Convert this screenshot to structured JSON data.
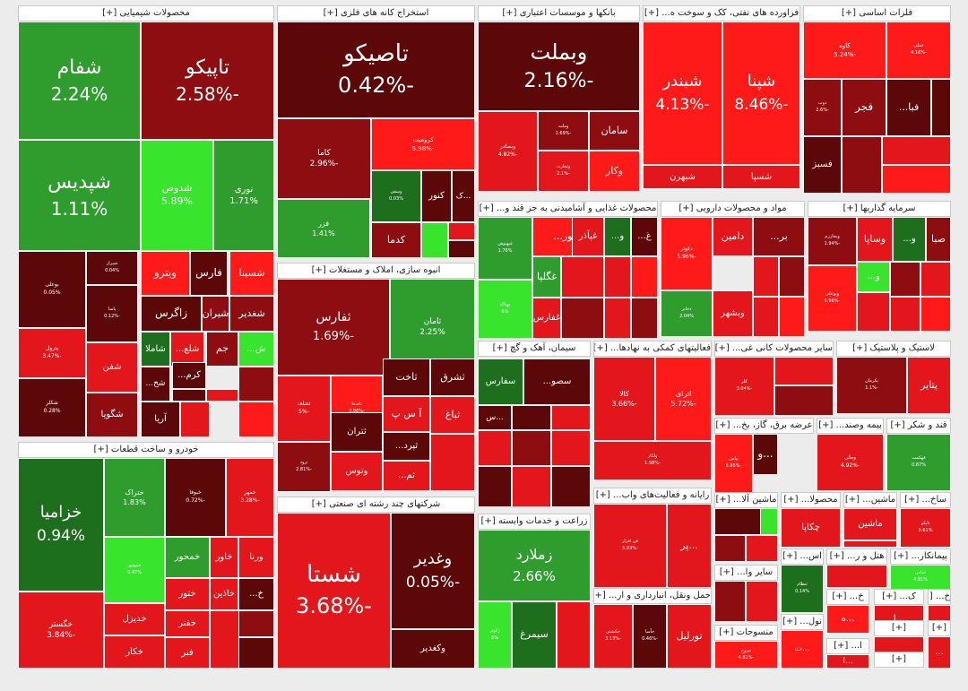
{
  "chart_data": {
    "type": "treemap",
    "colors": {
      "strong_green": "#39e52c",
      "green": "#2e9d2e",
      "dark_green": "#1d6e1d",
      "red": "#e3161b",
      "bright_red": "#ff1a1a",
      "dark_red": "#8e0d10",
      "maroon": "#5d0808"
    },
    "sectors": [
      {
        "name": "محصولات شیمیایی [+]"
      },
      {
        "name": "استخراج کانه های فلزی [+]"
      },
      {
        "name": "بانکها و موسسات اعتباری [+]"
      },
      {
        "name": "فراورده های نفتی، کک و سوخت ه... [+]"
      },
      {
        "name": "فلزات اساسی [+]"
      },
      {
        "name": "محصولات غذایی و آشامیدنی به جز قند و... [+]"
      },
      {
        "name": "مواد و محصولات دارویی [+]"
      },
      {
        "name": "سرمایه گذاریها [+]"
      },
      {
        "name": "انبوه سازی، املاک و مستغلات [+]"
      },
      {
        "name": "خودرو و ساخت قطعات [+]"
      },
      {
        "name": "سیمان، آهک و گچ [+]"
      },
      {
        "name": "فعالیتهای کمکی به نهادها... [+]"
      },
      {
        "name": "سایر محصولات کانی غی... [+]"
      },
      {
        "name": "لاستیک و پلاستیک [+]"
      },
      {
        "name": "شرکتهای چند رشته ای صنعتی [+]"
      },
      {
        "name": "زراعت و خدمات وابسته [+]"
      },
      {
        "name": "رایانه و فعالیت‌های واب... [+]"
      },
      {
        "name": "عرضه برق، گاز، بخ... [+]"
      },
      {
        "name": "بیمه وصند... [+]"
      },
      {
        "name": "قند و شکر [+]"
      },
      {
        "name": "ماشین آلا... [+]"
      },
      {
        "name": "محصولا... [+]"
      },
      {
        "name": "ماشین... [+]"
      },
      {
        "name": "ساخ... [+]"
      },
      {
        "name": "حمل ونقل، انبارداری و ار... [+]"
      },
      {
        "name": "سایر وا... [+]"
      },
      {
        "name": "منسوجات [+]"
      },
      {
        "name": "اس... [+]"
      },
      {
        "name": "پیمانکار... [+]"
      },
      {
        "name": "هتل و ر... [+]"
      },
      {
        "name": "نول... [+]"
      },
      {
        "name": "خ... [+]"
      },
      {
        "name": "خ... [+]"
      },
      {
        "name": "ک... [+]"
      },
      {
        "name": "ا... [+]"
      },
      {
        "name": "[+]"
      },
      {
        "name": "[+]"
      },
      {
        "name": "[+]"
      },
      {
        "name": "[+]"
      }
    ],
    "tiles": [
      {
        "n": "شفام",
        "p": "2.24%",
        "c": "green"
      },
      {
        "n": "تاپیکو",
        "p": "-2.58%",
        "c": "dark_red"
      },
      {
        "n": "شپدیس",
        "p": "1.11%",
        "c": "green"
      },
      {
        "n": "شدوص",
        "p": "5.89%",
        "c": "strong_green"
      },
      {
        "n": "نوری",
        "p": "1.71%",
        "c": "green"
      },
      {
        "n": "بوعلی",
        "p": "0.05%",
        "c": "maroon"
      },
      {
        "n": "شیراز",
        "p": "0.04%",
        "c": "maroon"
      },
      {
        "n": "پترول",
        "p": "-3.47%",
        "c": "red"
      },
      {
        "n": "شکلر",
        "p": "0.28%",
        "c": "maroon"
      },
      {
        "n": "پاسا",
        "p": "-0.12%",
        "c": "maroon"
      },
      {
        "n": "شفن",
        "p": "",
        "c": "red"
      },
      {
        "n": "شگویا",
        "p": "",
        "c": "dark_red"
      },
      {
        "n": "ویترو",
        "p": "",
        "c": "bright_red"
      },
      {
        "n": "فارس",
        "p": "",
        "c": "maroon"
      },
      {
        "n": "شسینا",
        "p": "",
        "c": "bright_red"
      },
      {
        "n": "زاگرس",
        "p": "",
        "c": "maroon"
      },
      {
        "n": "شیران",
        "p": "",
        "c": "dark_red"
      },
      {
        "n": "شغدیر",
        "p": "",
        "c": "dark_red"
      },
      {
        "n": "شاملا",
        "p": "",
        "c": "dark_green"
      },
      {
        "n": "شلع...",
        "p": "",
        "c": "red"
      },
      {
        "n": "جم",
        "p": "",
        "c": "dark_red"
      },
      {
        "n": "ش...",
        "p": "",
        "c": "strong_green"
      },
      {
        "n": "شخ...",
        "p": "",
        "c": "maroon"
      },
      {
        "n": "کرم...",
        "p": "",
        "c": "maroon"
      },
      {
        "n": "آریا",
        "p": "",
        "c": "maroon"
      },
      {
        "n": "تاصیکو",
        "p": "-0.42%",
        "c": "maroon"
      },
      {
        "n": "کاما",
        "p": "-2.96%",
        "c": "dark_red"
      },
      {
        "n": "کرومیت",
        "p": "-5.98%",
        "c": "bright_red"
      },
      {
        "n": "فزر",
        "p": "1.41%",
        "c": "green"
      },
      {
        "n": "وسفن",
        "p": "0.03%",
        "c": "dark_green"
      },
      {
        "n": "کنور",
        "p": "",
        "c": "maroon"
      },
      {
        "n": "...ک",
        "p": "",
        "c": "maroon"
      },
      {
        "n": "کدما",
        "p": "",
        "c": "dark_red"
      },
      {
        "n": "وبملت",
        "p": "-2.16%",
        "c": "maroon"
      },
      {
        "n": "وبصادر",
        "p": "-4.82%",
        "c": "red"
      },
      {
        "n": "وملت",
        "p": "-1.69%",
        "c": "dark_red"
      },
      {
        "n": "وتجارت",
        "p": "-2.1%",
        "c": "red"
      },
      {
        "n": "سامان",
        "p": "",
        "c": "dark_red"
      },
      {
        "n": "وکار",
        "p": "",
        "c": "bright_red"
      },
      {
        "n": "شبندر",
        "p": "-4.13%",
        "c": "bright_red"
      },
      {
        "n": "شپنا",
        "p": "-8.46%",
        "c": "bright_red"
      },
      {
        "n": "شبهرن",
        "p": "",
        "c": "red"
      },
      {
        "n": "شسپا",
        "p": "",
        "c": "red"
      },
      {
        "n": "کاوه",
        "p": "-5.24%",
        "c": "bright_red"
      },
      {
        "n": "فملی",
        "p": "-4.16%",
        "c": "bright_red"
      },
      {
        "n": "ذوب",
        "p": "-2.6%",
        "c": "dark_red"
      },
      {
        "n": "فجر",
        "p": "",
        "c": "dark_red"
      },
      {
        "n": "فبا...",
        "p": "",
        "c": "maroon"
      },
      {
        "n": "فسبز",
        "p": "",
        "c": "maroon"
      },
      {
        "n": "غکور...",
        "p": "",
        "c": "bright_red"
      },
      {
        "n": "غبهنوش",
        "p": "1.76%",
        "c": "green"
      },
      {
        "n": "بهپاک",
        "p": "6%",
        "c": "strong_green"
      },
      {
        "n": "غگلپا",
        "p": "",
        "c": "green"
      },
      {
        "n": "غفارس",
        "p": "",
        "c": "red"
      },
      {
        "n": "غپآذر",
        "p": "",
        "c": "red"
      },
      {
        "n": "غ...",
        "p": "",
        "c": "maroon"
      },
      {
        "n": "و...",
        "p": "",
        "c": "dark_green"
      },
      {
        "n": "دکوثر",
        "p": "-5.96%",
        "c": "bright_red"
      },
      {
        "n": "دامین",
        "p": "",
        "c": "red"
      },
      {
        "n": "بر...",
        "p": "",
        "c": "dark_red"
      },
      {
        "n": "دجابر",
        "p": "2.04%",
        "c": "green"
      },
      {
        "n": "وبشهر",
        "p": "",
        "c": "red"
      },
      {
        "n": "وساپا",
        "p": "",
        "c": "red"
      },
      {
        "n": "وبخارزم",
        "p": "-1.94%",
        "c": "dark_red"
      },
      {
        "n": "وبوعلی",
        "p": "-5.98%",
        "c": "bright_red"
      },
      {
        "n": "صبا",
        "p": "",
        "c": "dark_red"
      },
      {
        "n": "و...",
        "p": "",
        "c": "dark_green"
      },
      {
        "n": "و...",
        "p": "",
        "c": "strong_green"
      },
      {
        "n": "ثفارس",
        "p": "-1.69%",
        "c": "dark_red"
      },
      {
        "n": "ثامان",
        "p": "2.25%",
        "c": "green"
      },
      {
        "n": "ثشاهد",
        "p": "-5%",
        "c": "red"
      },
      {
        "n": "ثاصفا",
        "p": "-3.96%",
        "c": "bright_red"
      },
      {
        "n": "ثاخت",
        "p": "",
        "c": "maroon"
      },
      {
        "n": "ثشرق",
        "p": "",
        "c": "maroon"
      },
      {
        "n": "ثتران",
        "p": "",
        "c": "maroon"
      },
      {
        "n": "آ س پ",
        "p": "",
        "c": "red"
      },
      {
        "n": "ثباغ",
        "p": "",
        "c": "red"
      },
      {
        "n": "ثرود",
        "p": "-2.81%",
        "c": "dark_red"
      },
      {
        "n": "ثپرد...",
        "p": "",
        "c": "maroon"
      },
      {
        "n": "وتوس",
        "p": "",
        "c": "red"
      },
      {
        "n": "ثم...",
        "p": "",
        "c": "red"
      },
      {
        "n": "خزامیا",
        "p": "0.94%",
        "c": "dark_green"
      },
      {
        "n": "خگستر",
        "p": "-3.84%",
        "c": "red"
      },
      {
        "n": "ختراک",
        "p": "1.83%",
        "c": "green"
      },
      {
        "n": "خبوفا",
        "p": "-0.72%",
        "c": "maroon"
      },
      {
        "n": "خمهر",
        "p": "-3.28%",
        "c": "red"
      },
      {
        "n": "خموتور",
        "p": "5.47%",
        "c": "strong_green"
      },
      {
        "n": "خمحور",
        "p": "",
        "c": "green"
      },
      {
        "n": "خاور",
        "p": "",
        "c": "red"
      },
      {
        "n": "ورنا",
        "p": "",
        "c": "red"
      },
      {
        "n": "ختور",
        "p": "",
        "c": "red"
      },
      {
        "n": "خاذین",
        "p": "",
        "c": "red"
      },
      {
        "n": "خ...",
        "p": "",
        "c": "maroon"
      },
      {
        "n": "خدیزل",
        "p": "",
        "c": "red"
      },
      {
        "n": "خفنر",
        "p": "",
        "c": "red"
      },
      {
        "n": "خکار",
        "p": "",
        "c": "red"
      },
      {
        "n": "فنر",
        "p": "",
        "c": "red"
      },
      {
        "n": "سصو...",
        "p": "",
        "c": "maroon"
      },
      {
        "n": "سفارس",
        "p": "",
        "c": "dark_green"
      },
      {
        "n": "...س",
        "p": "",
        "c": "maroon"
      },
      {
        "n": "کالا",
        "p": "-3.66%",
        "c": "red"
      },
      {
        "n": "اترای",
        "p": "-5.72%",
        "c": "bright_red"
      },
      {
        "n": "ولکار",
        "p": "-1.98%",
        "c": "red"
      },
      {
        "n": "کمر...",
        "p": "",
        "c": "red"
      },
      {
        "n": "کلر",
        "p": "-3.04%",
        "c": "red"
      },
      {
        "n": "پتایر",
        "p": "",
        "c": "red"
      },
      {
        "n": "پکرمان",
        "p": "-1.1%",
        "c": "dark_red"
      },
      {
        "n": "شستا",
        "p": "-3.68%",
        "c": "red"
      },
      {
        "n": "وغدیر",
        "p": "-0.05%",
        "c": "maroon"
      },
      {
        "n": "وکغدیر",
        "p": "",
        "c": "maroon"
      },
      {
        "n": "زملارد",
        "p": "2.66%",
        "c": "green"
      },
      {
        "n": "سیمرغ",
        "p": "",
        "c": "dark_green"
      },
      {
        "n": "زکوثر",
        "p": "5%",
        "c": "strong_green"
      },
      {
        "n": "فن افزار",
        "p": "-5.93%",
        "c": "red"
      },
      {
        "n": "...پر",
        "p": "",
        "c": "red"
      },
      {
        "n": "...و",
        "p": "",
        "c": "maroon"
      },
      {
        "n": "بپاس",
        "p": "-5.85%",
        "c": "bright_red"
      },
      {
        "n": "وملی",
        "p": "-4.92%",
        "c": "red"
      },
      {
        "n": "قهکمت",
        "p": "0.87%",
        "c": "green"
      },
      {
        "n": "چکاپا",
        "p": "",
        "c": "red"
      },
      {
        "n": "ماشین",
        "p": "",
        "c": "red"
      },
      {
        "n": "تاپکو",
        "p": "0.61%",
        "c": "red"
      },
      {
        "n": "حکشتی",
        "p": "-3.13%",
        "c": "red"
      },
      {
        "n": "حآسا",
        "p": "-0.46%",
        "c": "maroon"
      },
      {
        "n": "تورلیل",
        "p": "",
        "c": "red"
      },
      {
        "n": "نبروج",
        "p": "-4.81%",
        "c": "bright_red"
      },
      {
        "n": "ثنظام",
        "p": "0.14%",
        "c": "dark_green"
      },
      {
        "n": "ثبناس",
        "p": "4.91%",
        "c": "strong_green"
      },
      {
        "n": "...ه",
        "p": "",
        "c": "bright_red"
      },
      {
        "n": "...ت",
        "p": "",
        "c": "bright_red"
      },
      {
        "n": "...ا",
        "p": "",
        "c": "red"
      },
      {
        "n": "...ا",
        "p": "",
        "c": "red"
      },
      {
        "n": "...",
        "p": "",
        "c": "red"
      },
      {
        "n": "...",
        "p": "",
        "c": "red"
      },
      {
        "n": "...",
        "p": "",
        "c": "red"
      },
      {
        "n": "...",
        "p": "",
        "c": "red"
      }
    ]
  }
}
